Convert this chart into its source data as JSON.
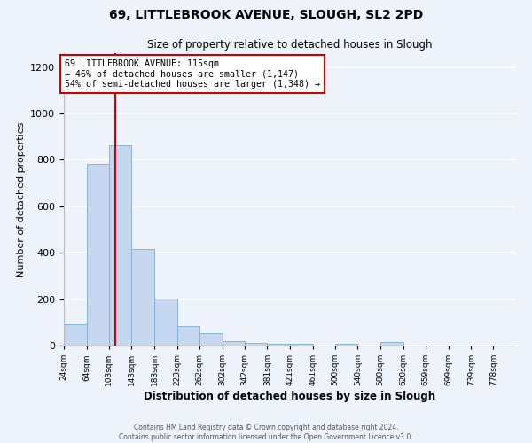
{
  "title": "69, LITTLEBROOK AVENUE, SLOUGH, SL2 2PD",
  "subtitle": "Size of property relative to detached houses in Slough",
  "xlabel": "Distribution of detached houses by size in Slough",
  "ylabel": "Number of detached properties",
  "bar_color": "#c5d8f0",
  "bar_edge_color": "#7aadd4",
  "vline_x": 115,
  "vline_color": "#cc0000",
  "annotation_line1": "69 LITTLEBROOK AVENUE: 115sqm",
  "annotation_line2": "← 46% of detached houses are smaller (1,147)",
  "annotation_line3": "54% of semi-detached houses are larger (1,348) →",
  "annotation_box_color": "#ffffff",
  "annotation_box_edge": "#cc0000",
  "footer1": "Contains HM Land Registry data © Crown copyright and database right 2024.",
  "footer2": "Contains public sector information licensed under the Open Government Licence v3.0.",
  "bins": [
    24,
    64,
    103,
    143,
    183,
    223,
    262,
    302,
    342,
    381,
    421,
    461,
    500,
    540,
    580,
    620,
    659,
    699,
    739,
    778,
    818
  ],
  "counts": [
    93,
    783,
    863,
    415,
    204,
    83,
    53,
    20,
    12,
    9,
    8,
    0,
    9,
    0,
    14,
    0,
    0,
    0,
    0,
    0
  ],
  "ylim": [
    0,
    1260
  ],
  "background_color": "#eef2fb",
  "grid_color": "#ffffff"
}
